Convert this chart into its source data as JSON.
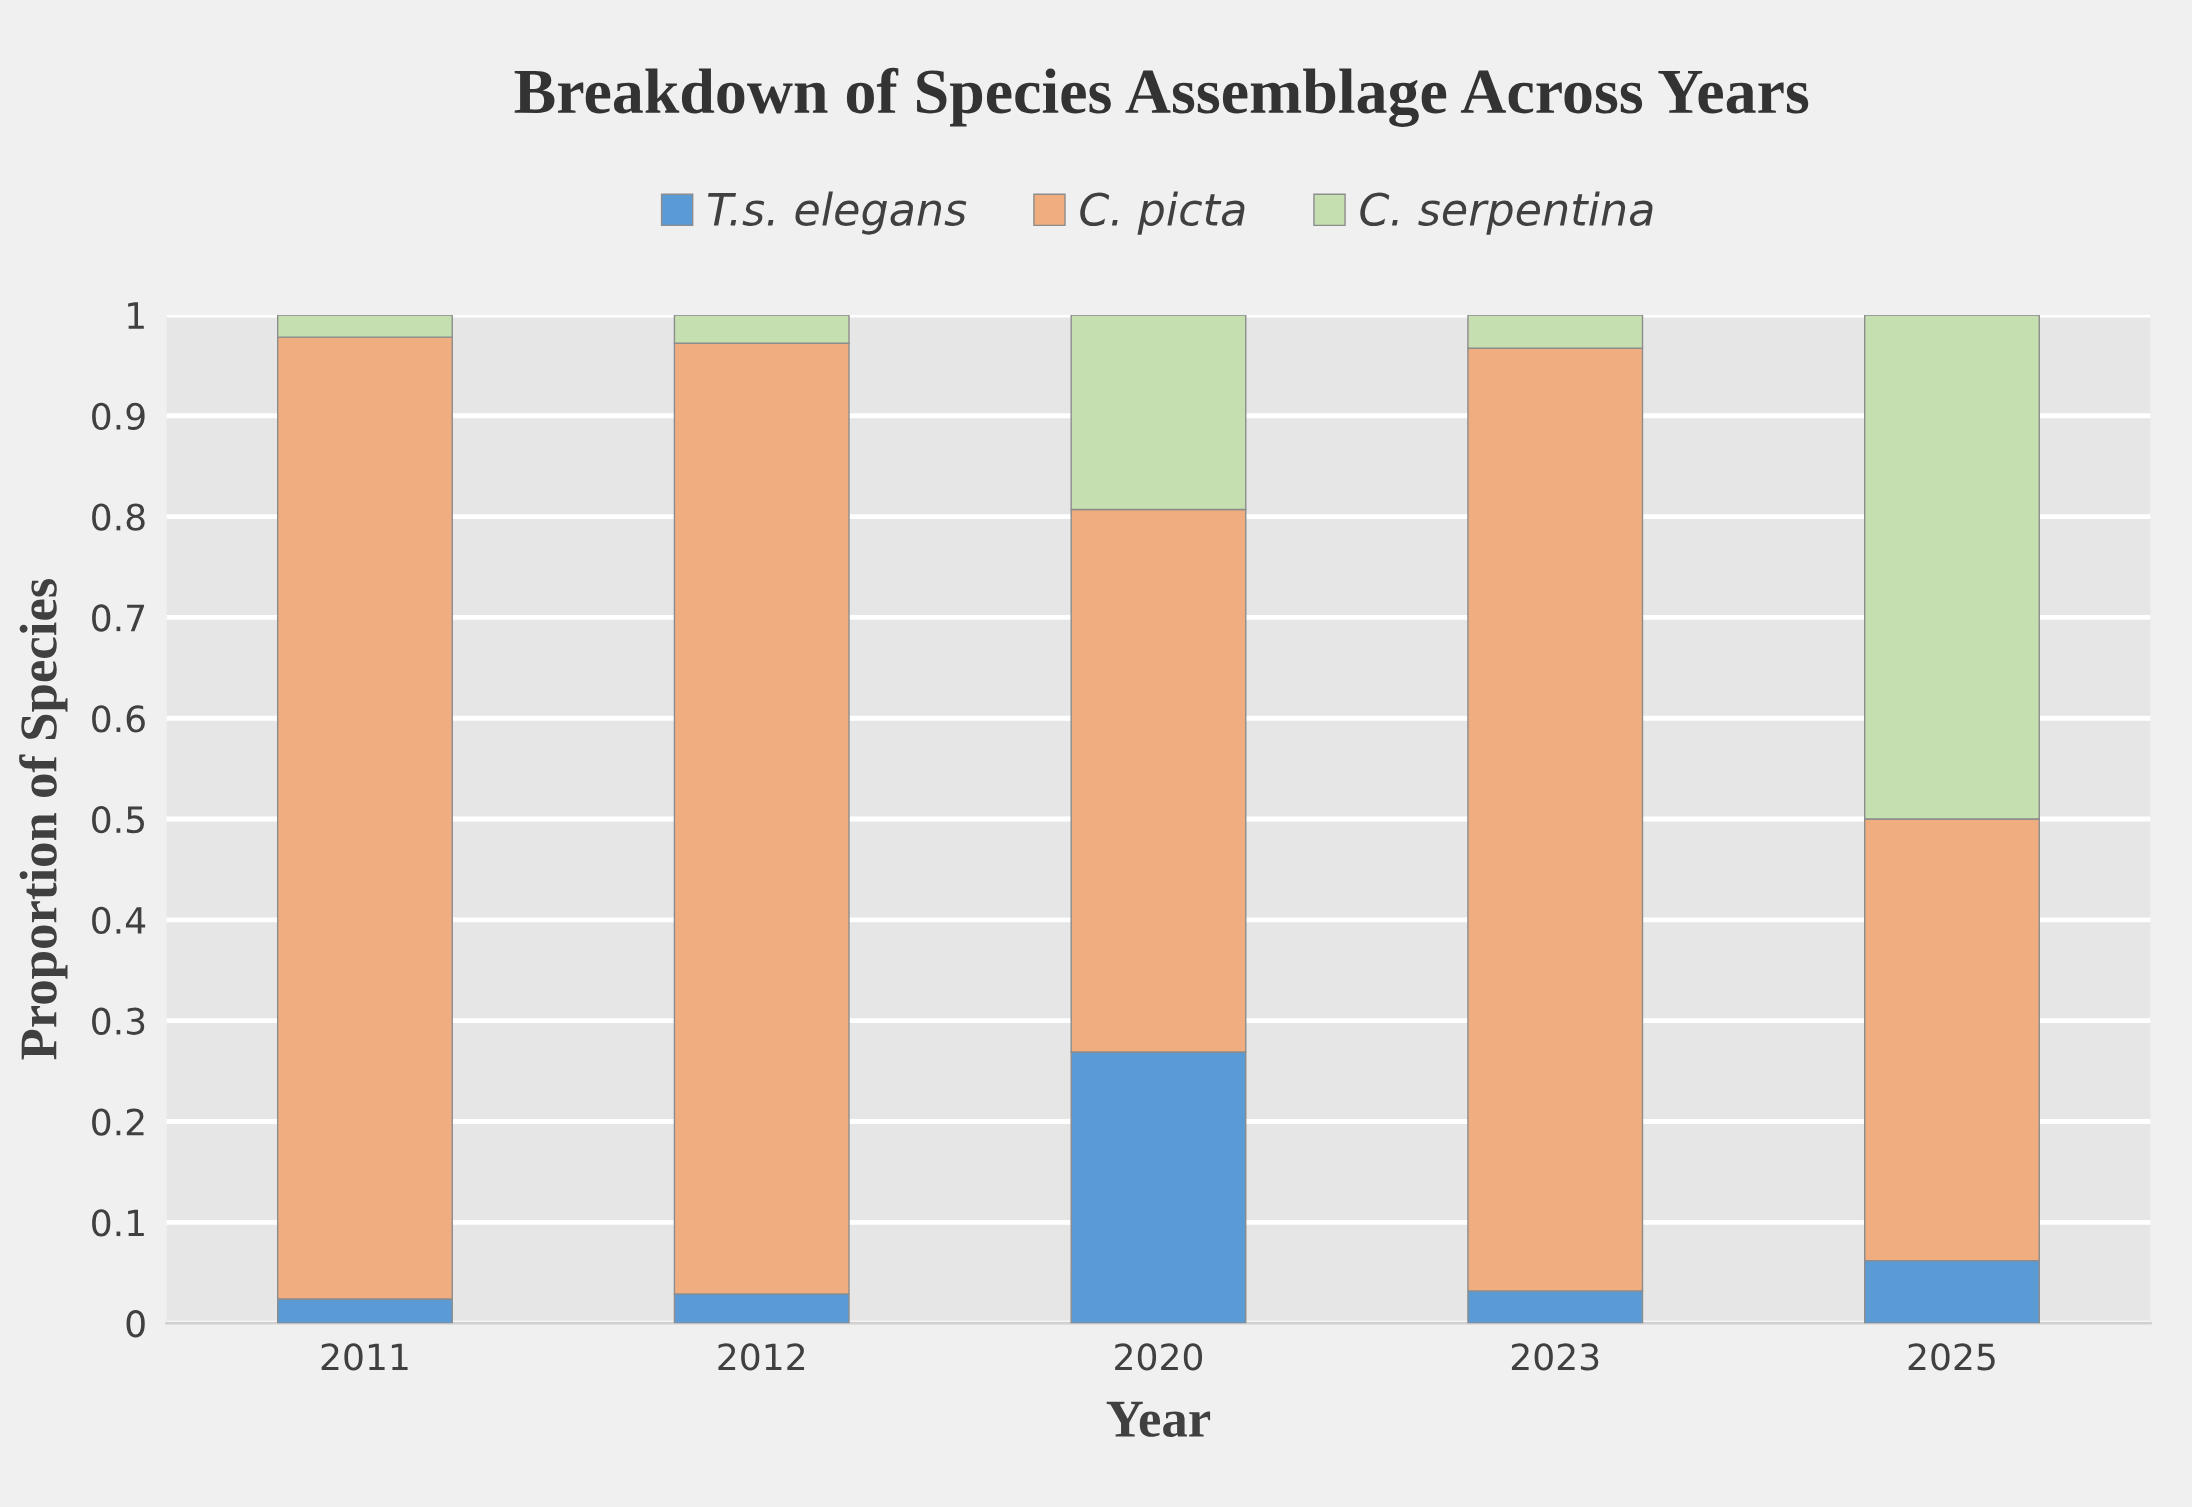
{
  "chart_data": {
    "type": "bar",
    "title": "Breakdown of Species Assemblage Across Years",
    "xlabel": "Year",
    "ylabel": "Proportion of Species",
    "categories": [
      "2011",
      "2012",
      "2020",
      "2023",
      "2025"
    ],
    "series": [
      {
        "name": "T.s. elegans",
        "color": "#5b9bd5",
        "values": [
          0.024,
          0.029,
          0.269,
          0.032,
          0.062
        ]
      },
      {
        "name": "C. picta",
        "color": "#f0ad80",
        "values": [
          0.954,
          0.943,
          0.538,
          0.935,
          0.438
        ]
      },
      {
        "name": "C. serpentina",
        "color": "#c5dfb1",
        "values": [
          0.022,
          0.028,
          0.193,
          0.033,
          0.5
        ]
      }
    ],
    "stacked": true,
    "ylim": [
      0,
      1
    ],
    "yticks": [
      0,
      0.1,
      0.2,
      0.3,
      0.4,
      0.5,
      0.6,
      0.7,
      0.8,
      0.9,
      1
    ],
    "grid": "y",
    "legend": "top"
  }
}
